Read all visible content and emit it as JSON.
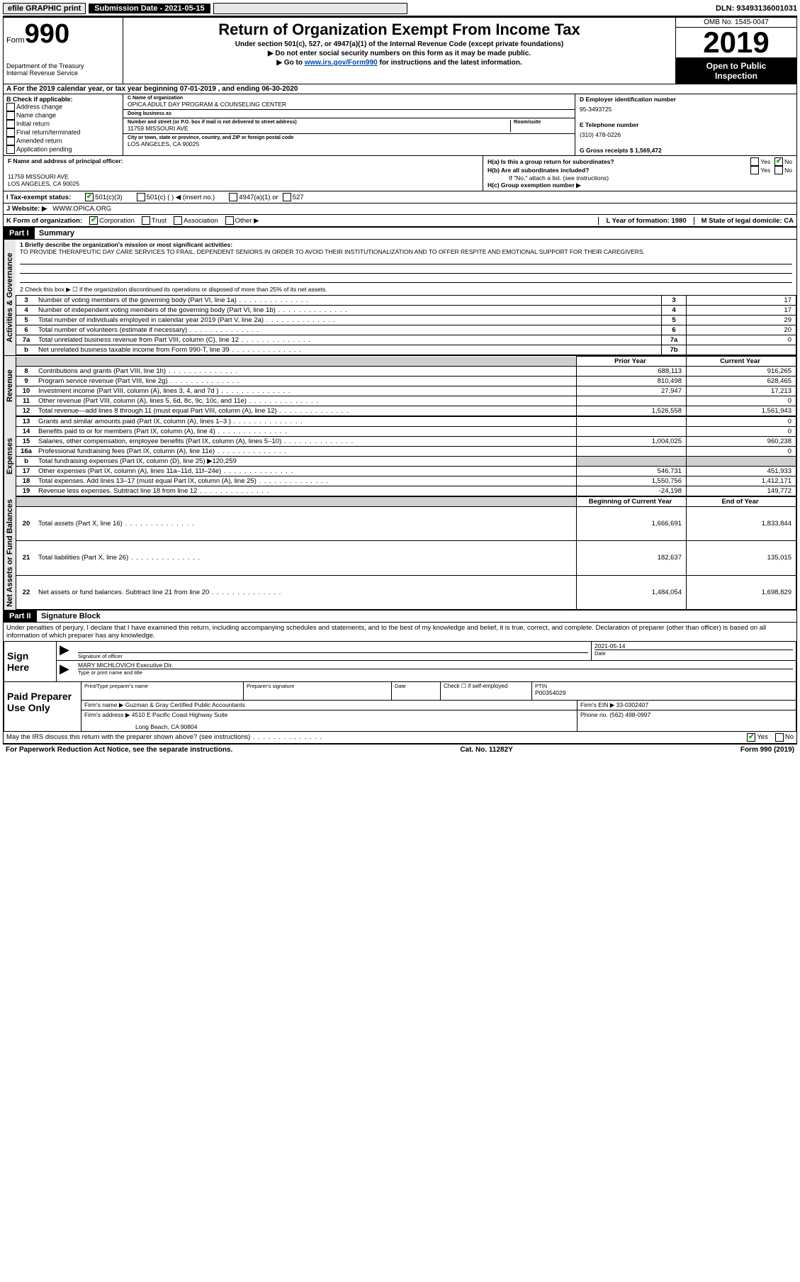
{
  "topbar": {
    "efile": "efile GRAPHIC print",
    "submission_label": "Submission Date - 2021-05-15",
    "dln": "DLN: 93493136001031"
  },
  "header": {
    "form_prefix": "Form",
    "form_number": "990",
    "dept": "Department of the Treasury",
    "irs": "Internal Revenue Service",
    "title": "Return of Organization Exempt From Income Tax",
    "subtitle": "Under section 501(c), 527, or 4947(a)(1) of the Internal Revenue Code (except private foundations)",
    "instr1": "▶ Do not enter social security numbers on this form as it may be made public.",
    "instr2_pre": "▶ Go to ",
    "instr2_link": "www.irs.gov/Form990",
    "instr2_post": " for instructions and the latest information.",
    "omb": "OMB No. 1545-0047",
    "year": "2019",
    "open1": "Open to Public",
    "open2": "Inspection"
  },
  "row_a": "A For the 2019 calendar year, or tax year beginning 07-01-2019   , and ending 06-30-2020",
  "section_b": {
    "label": "B Check if applicable:",
    "opts": [
      "Address change",
      "Name change",
      "Initial return",
      "Final return/terminated",
      "Amended return",
      "Application pending"
    ]
  },
  "section_c": {
    "name_label": "C Name of organization",
    "name": "OPICA ADULT DAY PROGRAM & COUNSELING CENTER",
    "dba_label": "Doing business as",
    "dba": "",
    "addr_label": "Number and street (or P.O. box if mail is not delivered to street address)",
    "room_label": "Room/suite",
    "addr": "11759 MISSOURI AVE",
    "city_label": "City or town, state or province, country, and ZIP or foreign postal code",
    "city": "LOS ANGELES, CA  90025"
  },
  "section_d": {
    "ein_label": "D Employer identification number",
    "ein": "95-3493725",
    "phone_label": "E Telephone number",
    "phone": "(310) 478-0226",
    "gross_label": "G Gross receipts $ 1,569,472"
  },
  "section_f": {
    "label": "F  Name and address of principal officer:",
    "addr1": "11759 MISSOURI AVE",
    "addr2": "LOS ANGELES, CA  90025"
  },
  "section_h": {
    "ha": "H(a)  Is this a group return for subordinates?",
    "hb": "H(b)  Are all subordinates included?",
    "hb_note": "If \"No,\" attach a list. (see instructions)",
    "hc": "H(c)  Group exemption number ▶",
    "yes": "Yes",
    "no": "No"
  },
  "tax_status": {
    "label": "I  Tax-exempt status:",
    "o1": "501(c)(3)",
    "o2": "501(c) (  ) ◀ (insert no.)",
    "o3": "4947(a)(1) or",
    "o4": "527"
  },
  "website": {
    "label": "J  Website: ▶",
    "value": "WWW.OPICA.ORG"
  },
  "k_row": {
    "label": "K Form of organization:",
    "o1": "Corporation",
    "o2": "Trust",
    "o3": "Association",
    "o4": "Other ▶",
    "l_label": "L Year of formation: 1980",
    "m_label": "M State of legal domicile: CA"
  },
  "part1": {
    "header": "Part I",
    "title": "Summary",
    "line1_label": "1  Briefly describe the organization's mission or most significant activities:",
    "line1_text": "TO PROVIDE THERAPEUTIC DAY CARE SERVICES TO FRAIL, DEPENDENT SENIORS IN ORDER TO AVOID THEIR INSTITUTIONALIZATION AND TO OFFER RESPITE AND EMOTIONAL SUPPORT FOR THEIR CAREGIVERS.",
    "line2": "2  Check this box ▶ ☐  if the organization discontinued its operations or disposed of more than 25% of its net assets.",
    "vtab_gov": "Activities & Governance",
    "vtab_rev": "Revenue",
    "vtab_exp": "Expenses",
    "vtab_net": "Net Assets or Fund Balances",
    "col_prior": "Prior Year",
    "col_current": "Current Year",
    "col_begin": "Beginning of Current Year",
    "col_end": "End of Year",
    "fundraising_note": "Total fundraising expenses (Part IX, column (D), line 25) ▶120,259",
    "rows_gov": [
      {
        "n": "3",
        "d": "Number of voting members of the governing body (Part VI, line 1a)",
        "box": "3",
        "v": "17"
      },
      {
        "n": "4",
        "d": "Number of independent voting members of the governing body (Part VI, line 1b)",
        "box": "4",
        "v": "17"
      },
      {
        "n": "5",
        "d": "Total number of individuals employed in calendar year 2019 (Part V, line 2a)",
        "box": "5",
        "v": "29"
      },
      {
        "n": "6",
        "d": "Total number of volunteers (estimate if necessary)",
        "box": "6",
        "v": "20"
      },
      {
        "n": "7a",
        "d": "Total unrelated business revenue from Part VIII, column (C), line 12",
        "box": "7a",
        "v": "0"
      },
      {
        "n": "b",
        "d": "Net unrelated business taxable income from Form 990-T, line 39",
        "box": "7b",
        "v": ""
      }
    ],
    "rows_rev": [
      {
        "n": "8",
        "d": "Contributions and grants (Part VIII, line 1h)",
        "p": "688,113",
        "c": "916,265"
      },
      {
        "n": "9",
        "d": "Program service revenue (Part VIII, line 2g)",
        "p": "810,498",
        "c": "628,465"
      },
      {
        "n": "10",
        "d": "Investment income (Part VIII, column (A), lines 3, 4, and 7d )",
        "p": "27,947",
        "c": "17,213"
      },
      {
        "n": "11",
        "d": "Other revenue (Part VIII, column (A), lines 5, 6d, 8c, 9c, 10c, and 11e)",
        "p": "",
        "c": "0"
      },
      {
        "n": "12",
        "d": "Total revenue—add lines 8 through 11 (must equal Part VIII, column (A), line 12)",
        "p": "1,526,558",
        "c": "1,561,943"
      }
    ],
    "rows_exp": [
      {
        "n": "13",
        "d": "Grants and similar amounts paid (Part IX, column (A), lines 1–3 )",
        "p": "",
        "c": "0"
      },
      {
        "n": "14",
        "d": "Benefits paid to or for members (Part IX, column (A), line 4)",
        "p": "",
        "c": "0"
      },
      {
        "n": "15",
        "d": "Salaries, other compensation, employee benefits (Part IX, column (A), lines 5–10)",
        "p": "1,004,025",
        "c": "960,238"
      },
      {
        "n": "16a",
        "d": "Professional fundraising fees (Part IX, column (A), line 11e)",
        "p": "",
        "c": "0"
      },
      {
        "n": "17",
        "d": "Other expenses (Part IX, column (A), lines 11a–11d, 11f–24e)",
        "p": "546,731",
        "c": "451,933"
      },
      {
        "n": "18",
        "d": "Total expenses. Add lines 13–17 (must equal Part IX, column (A), line 25)",
        "p": "1,550,756",
        "c": "1,412,171"
      },
      {
        "n": "19",
        "d": "Revenue less expenses. Subtract line 18 from line 12",
        "p": "-24,198",
        "c": "149,772"
      }
    ],
    "rows_net": [
      {
        "n": "20",
        "d": "Total assets (Part X, line 16)",
        "p": "1,666,691",
        "c": "1,833,844"
      },
      {
        "n": "21",
        "d": "Total liabilities (Part X, line 26)",
        "p": "182,637",
        "c": "135,015"
      },
      {
        "n": "22",
        "d": "Net assets or fund balances. Subtract line 21 from line 20",
        "p": "1,484,054",
        "c": "1,698,829"
      }
    ]
  },
  "part2": {
    "header": "Part II",
    "title": "Signature Block",
    "penalty": "Under penalties of perjury, I declare that I have examined this return, including accompanying schedules and statements, and to the best of my knowledge and belief, it is true, correct, and complete. Declaration of preparer (other than officer) is based on all information of which preparer has any knowledge.",
    "sign_here": "Sign Here",
    "sig_officer": "Signature of officer",
    "sig_date": "2021-05-14",
    "date_label": "Date",
    "officer_name": "MARY MICHLOVICH  Executive Dir.",
    "type_name": "Type or print name and title",
    "paid_prep": "Paid Preparer Use Only",
    "prep_name_label": "Print/Type preparer's name",
    "prep_sig_label": "Preparer's signature",
    "check_self": "Check ☐ if self-employed",
    "ptin_label": "PTIN",
    "ptin": "P00354029",
    "firm_name_label": "Firm's name   ▶",
    "firm_name": "Guzman & Gray Certified Public Accountants",
    "firm_ein_label": "Firm's EIN ▶",
    "firm_ein": "33-0302407",
    "firm_addr_label": "Firm's address ▶",
    "firm_addr1": "4510 E Pacific Coast Highway Suite",
    "firm_addr2": "Long Beach, CA  90804",
    "phone_label": "Phone no.",
    "phone": "(562) 498-0997",
    "discuss": "May the IRS discuss this return with the preparer shown above? (see instructions)",
    "yes": "Yes",
    "no": "No"
  },
  "footer": {
    "pra": "For Paperwork Reduction Act Notice, see the separate instructions.",
    "cat": "Cat. No. 11282Y",
    "form": "Form 990 (2019)"
  },
  "colors": {
    "link": "#0047ab",
    "check": "#0a9040",
    "shade": "#d0d0d0"
  }
}
